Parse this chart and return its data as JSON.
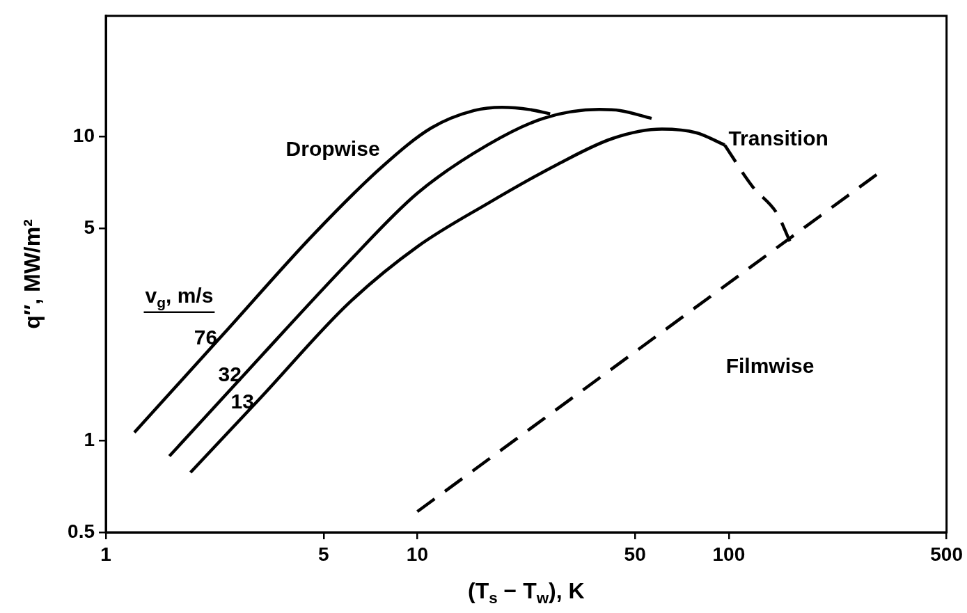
{
  "chart_data": {
    "type": "line",
    "xlabel": "(T$_{s}$ − T$_{w}$), K",
    "ylabel": "q″, MW/m²",
    "legend_title": "v$_{g}$, m/s",
    "log": "xy",
    "grid": false,
    "legend": "left",
    "marker": "none",
    "xlim": [
      1,
      500
    ],
    "ylim": [
      0.5,
      25
    ],
    "xticks": [
      1,
      5,
      10,
      50,
      100,
      500
    ],
    "yticks": [
      0.5,
      1,
      5,
      10
    ],
    "series": [
      {
        "name": "76",
        "color": "#000000",
        "line_style": "solid",
        "x": [
          1.235,
          2.4,
          4.64,
          7.77,
          11.1,
          15.2,
          18.7,
          22.9,
          26.7
        ],
        "values": [
          1.065,
          2.26,
          4.77,
          8.03,
          10.7,
          12.2,
          12.5,
          12.3,
          11.9
        ]
      },
      {
        "name": "32",
        "color": "#000000",
        "line_style": "solid",
        "x": [
          1.6,
          2.87,
          6.01,
          10,
          16.8,
          25.4,
          38.4,
          44.8,
          56.5
        ],
        "values": [
          0.89,
          1.71,
          3.87,
          6.52,
          9.4,
          11.5,
          12.3,
          12.2,
          11.5
        ]
      },
      {
        "name": "13",
        "color": "#000000",
        "line_style": "solid",
        "x": [
          1.87,
          3.15,
          6.01,
          10,
          16.8,
          28.2,
          42.5,
          61.0,
          78.9,
          97.0
        ],
        "values": [
          0.787,
          1.39,
          2.83,
          4.35,
          6.03,
          8.12,
          9.89,
          10.6,
          10.3,
          9.4
        ]
      },
      {
        "color": "#000000",
        "line_style": "dashed",
        "x": [
          97.0,
          119,
          143,
          157
        ],
        "values": [
          9.4,
          6.87,
          5.58,
          4.53
        ]
      },
      {
        "color": "#000000",
        "line_style": "dashed",
        "x": [
          10,
          298
        ],
        "values": [
          0.585,
          7.51
        ]
      }
    ],
    "annotations": [
      "Dropwise",
      "Transition",
      "Filmwise"
    ]
  }
}
